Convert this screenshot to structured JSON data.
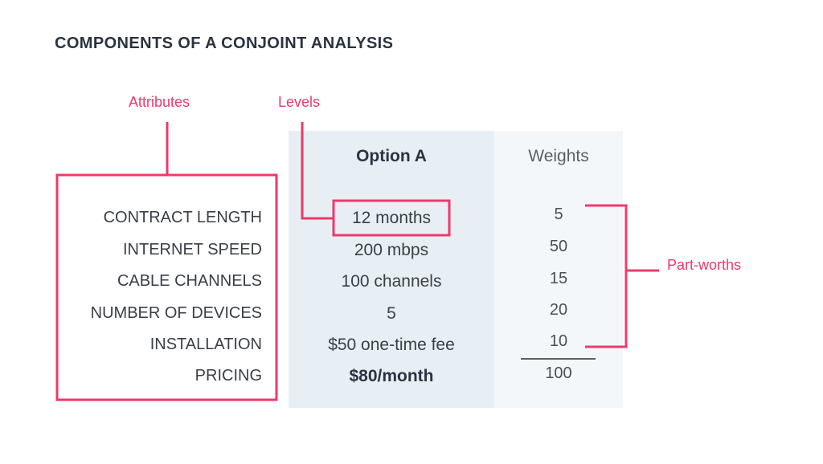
{
  "title": "COMPONENTS OF A CONJOINT ANALYSIS",
  "callouts": {
    "attributes": "Attributes",
    "levels": "Levels",
    "part_worths": "Part-worths"
  },
  "headers": {
    "option": "Option A",
    "weights": "Weights"
  },
  "rows": [
    {
      "attribute": "CONTRACT LENGTH",
      "level": "12 months",
      "weight": "5"
    },
    {
      "attribute": "INTERNET SPEED",
      "level": "200 mbps",
      "weight": "50"
    },
    {
      "attribute": "CABLE CHANNELS",
      "level": "100 channels",
      "weight": "15"
    },
    {
      "attribute": "NUMBER OF DEVICES",
      "level": "5",
      "weight": "20"
    },
    {
      "attribute": "INSTALLATION",
      "level": "$50 one-time fee",
      "weight": "10"
    },
    {
      "attribute": "PRICING",
      "level": "$80/month",
      "weight": ""
    }
  ],
  "total": "100",
  "colors": {
    "accent": "#f0386b",
    "text": "#3a3f46",
    "title": "#2b3340",
    "option_panel": "#e8eff4",
    "weights_panel": "#f3f7fa"
  }
}
